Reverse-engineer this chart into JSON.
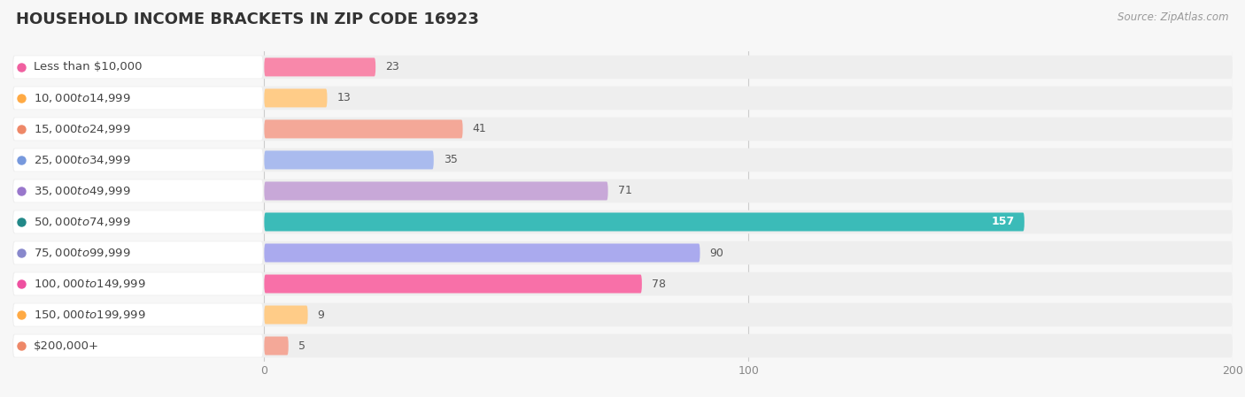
{
  "title": "HOUSEHOLD INCOME BRACKETS IN ZIP CODE 16923",
  "source": "Source: ZipAtlas.com",
  "categories": [
    "Less than $10,000",
    "$10,000 to $14,999",
    "$15,000 to $24,999",
    "$25,000 to $34,999",
    "$35,000 to $49,999",
    "$50,000 to $74,999",
    "$75,000 to $99,999",
    "$100,000 to $149,999",
    "$150,000 to $199,999",
    "$200,000+"
  ],
  "values": [
    23,
    13,
    41,
    35,
    71,
    157,
    90,
    78,
    9,
    5
  ],
  "bar_colors": [
    "#F888AA",
    "#FFCC88",
    "#F4A898",
    "#AABBEE",
    "#C8A8D8",
    "#3BBBB8",
    "#AAAAEE",
    "#F870A8",
    "#FFCC88",
    "#F4A898"
  ],
  "dot_colors": [
    "#F060A0",
    "#FFAA44",
    "#EE8868",
    "#7799DD",
    "#9977CC",
    "#228888",
    "#8888CC",
    "#EE50A0",
    "#FFAA44",
    "#EE8868"
  ],
  "xlim_max": 200,
  "xticks": [
    0,
    100,
    200
  ],
  "background_color": "#f7f7f7",
  "row_bg_color": "#eeeeee",
  "title_fontsize": 13,
  "label_fontsize": 9.5,
  "value_fontsize": 9
}
